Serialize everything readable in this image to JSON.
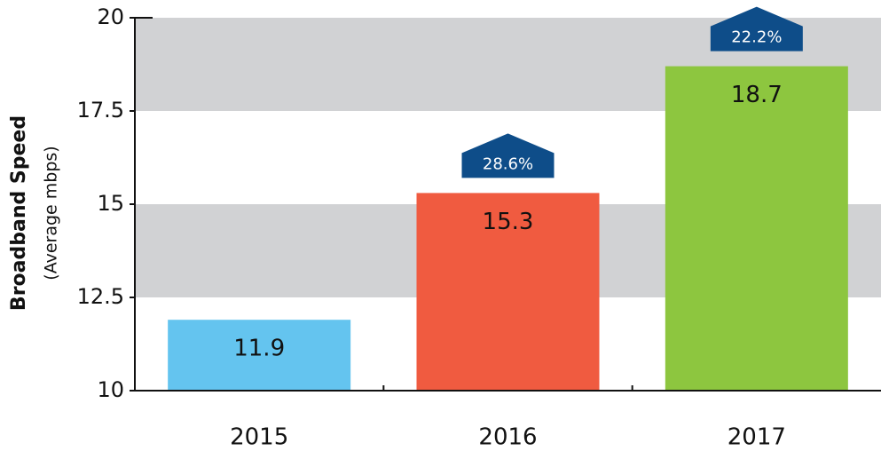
{
  "chart_data": {
    "type": "bar",
    "y_label": "Broadband Speed",
    "y_sublabel": "(Average mbps)",
    "categories": [
      "2015",
      "2016",
      "2017"
    ],
    "values": [
      11.9,
      15.3,
      18.7
    ],
    "colors": [
      "#64c4ef",
      "#f05b40",
      "#8dc63f"
    ],
    "annotations": [
      null,
      "28.6%",
      "22.2%"
    ],
    "annotation_color": "#0e4d89",
    "band_color": "#d1d2d4",
    "ylim": [
      10,
      20
    ],
    "yticks": [
      10,
      12.5,
      15,
      17.5,
      20
    ],
    "grid": true
  }
}
